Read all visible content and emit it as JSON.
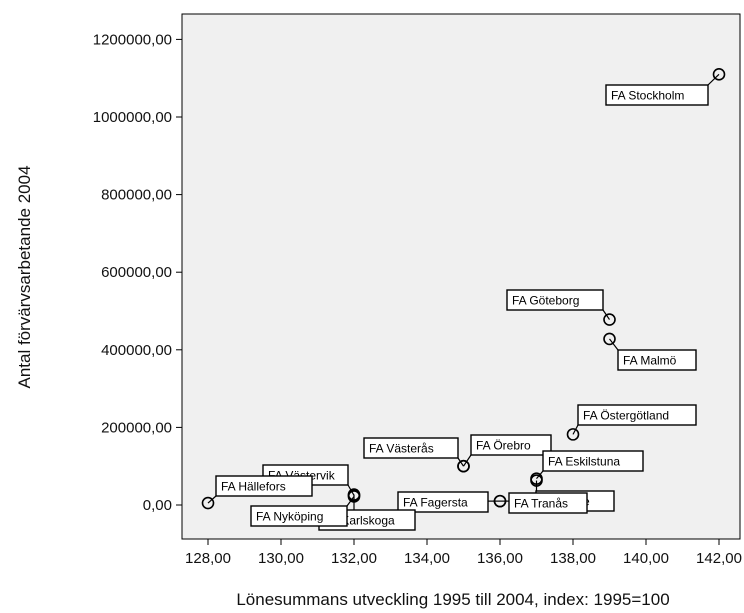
{
  "chart_data": {
    "type": "scatter",
    "xlabel": "Lönesummans utveckling 1995 till 2004, index: 1995=100",
    "ylabel": "Antal förvärvsarbetande 2004",
    "xlim": [
      127,
      143
    ],
    "ylim": [
      -70000,
      1280000
    ],
    "x_ticks": [
      "128,00",
      "130,00",
      "132,00",
      "134,00",
      "136,00",
      "138,00",
      "140,00",
      "142,00"
    ],
    "y_ticks": [
      "0,00",
      "200000,00",
      "400000,00",
      "600000,00",
      "800000,00",
      "1000000,00",
      "1200000,00"
    ],
    "plot_background": "#f0f0f0",
    "points": [
      {
        "label": "FA Stockholm",
        "x": 142,
        "y": 1110000
      },
      {
        "label": "FA Göteborg",
        "x": 139,
        "y": 478000
      },
      {
        "label": "FA Malmö",
        "x": 139,
        "y": 428000
      },
      {
        "label": "FA Östergötland",
        "x": 138,
        "y": 182000
      },
      {
        "label": "FA Västerås",
        "x": 135,
        "y": 100000
      },
      {
        "label": "FA Örebro",
        "x": 135,
        "y": 100000
      },
      {
        "label": "FA Eskilstuna",
        "x": 137,
        "y": 68000
      },
      {
        "label": "FA Gävle",
        "x": 137,
        "y": 63000
      },
      {
        "label": "FA Tranås",
        "x": 136,
        "y": 10000
      },
      {
        "label": "FA Fagersta",
        "x": 136,
        "y": 10000
      },
      {
        "label": "FA Karlskoga",
        "x": 132,
        "y": 27000
      },
      {
        "label": "FA Nyköping",
        "x": 132,
        "y": 22000
      },
      {
        "label": "FA Västervik",
        "x": 132,
        "y": 25000
      },
      {
        "label": "FA Hällefors",
        "x": 128,
        "y": 5000
      }
    ]
  }
}
